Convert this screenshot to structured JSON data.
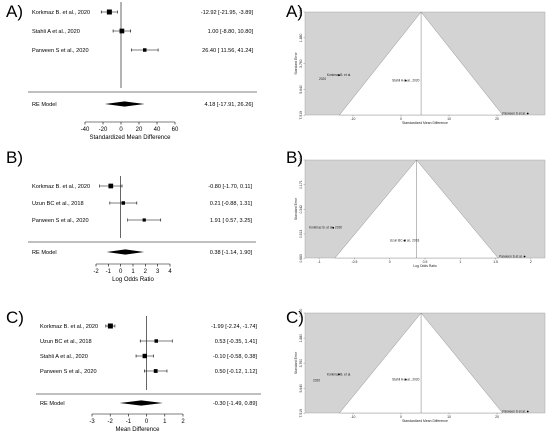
{
  "chart_data": [
    {
      "panel": "A)",
      "type": "forest",
      "xlabel": "Standardized Mean Difference",
      "xlim": [
        -40,
        60
      ],
      "xticks": [
        "-40",
        "-20",
        "0",
        "20",
        "40",
        "60"
      ],
      "xtick_values": [
        -40,
        -20,
        0,
        20,
        40,
        60
      ],
      "studies": [
        {
          "label": "Korkmaz B. et al., 2020",
          "est": -12.92,
          "lo": -21.95,
          "hi": -3.89,
          "ci": "-12.92 [-21.95, -3.89]"
        },
        {
          "label": "Stahli A et al., 2020",
          "est": 1.0,
          "lo": -8.8,
          "hi": 10.8,
          "ci": "1.00 [-8.80, 10.80]"
        },
        {
          "label": "Parween S et al., 2020",
          "est": 26.4,
          "lo": 11.56,
          "hi": 41.24,
          "ci": "26.40 [ 11.56, 41.24]"
        }
      ],
      "model": {
        "label": "RE Model",
        "est": 4.18,
        "lo": -17.91,
        "hi": 26.26,
        "ci": "4.18 [-17.91, 26.26]"
      }
    },
    {
      "panel": "B)",
      "type": "forest",
      "xlabel": "Log Odds Ratio",
      "xlim": [
        -2,
        4
      ],
      "xticks": [
        "-2",
        "-1",
        "0",
        "1",
        "2",
        "3",
        "4"
      ],
      "xtick_values": [
        -2,
        -1,
        0,
        1,
        2,
        3,
        4
      ],
      "studies": [
        {
          "label": "Korkmaz B. et al., 2020",
          "est": -0.8,
          "lo": -1.7,
          "hi": 0.11,
          "ci": "-0.80 [-1.70, 0.11]"
        },
        {
          "label": "Uzun BC et al., 2018",
          "est": 0.21,
          "lo": -0.88,
          "hi": 1.31,
          "ci": "0.21 [-0.88, 1.31]"
        },
        {
          "label": "Parween S et al., 2020",
          "est": 1.91,
          "lo": 0.57,
          "hi": 3.25,
          "ci": "1.91 [ 0.57, 3.25]"
        }
      ],
      "model": {
        "label": "RE Model",
        "est": 0.38,
        "lo": -1.14,
        "hi": 1.9,
        "ci": "0.38 [-1.14, 1.90]"
      }
    },
    {
      "panel": "C)",
      "type": "forest",
      "xlabel": "Mean Difference",
      "xlim": [
        -3,
        2
      ],
      "xticks": [
        "-3",
        "-2",
        "-1",
        "0",
        "1",
        "2"
      ],
      "xtick_values": [
        -3,
        -2,
        -1,
        0,
        1,
        2
      ],
      "studies": [
        {
          "label": "Korkmaz B. et al., 2020",
          "est": -1.99,
          "lo": -2.24,
          "hi": -1.74,
          "ci": "-1.99 [-2.24, -1.74]"
        },
        {
          "label": "Uzun BC et al., 2018",
          "est": 0.53,
          "lo": -0.35,
          "hi": 1.41,
          "ci": "0.53 [-0.35, 1.41]"
        },
        {
          "label": "Stahli A et al., 2020",
          "est": -0.1,
          "lo": -0.58,
          "hi": 0.38,
          "ci": "-0.10 [-0.58, 0.38]"
        },
        {
          "label": "Parween S et al., 2020",
          "est": 0.5,
          "lo": -0.12,
          "hi": 1.12,
          "ci": "0.50 [-0.12, 1.12]"
        }
      ],
      "model": {
        "label": "RE Model",
        "est": -0.3,
        "lo": -1.49,
        "hi": 0.89,
        "ci": "-0.30 [-1.49, 0.89]"
      }
    },
    {
      "panel": "A)",
      "type": "funnel",
      "xlabel": "Standardized Mean Difference",
      "ylabel": "Standard Error",
      "xlim": [
        -20,
        30
      ],
      "ylim": [
        7.5,
        0
      ],
      "xticks": [
        "-10",
        "0",
        "10",
        "20"
      ],
      "xtick_values": [
        -10,
        0,
        10,
        20
      ],
      "yticks": [
        "0.000",
        "1.880",
        "3.760",
        "5.640",
        "7.519"
      ],
      "ytick_values": [
        0,
        1.88,
        3.76,
        5.64,
        7.519
      ],
      "center": 4.18,
      "points": [
        {
          "label": "Korkmaz B. et al.",
          "x": -12.92,
          "y": 4.6
        },
        {
          "label": "2020",
          "x": -12.92,
          "y": 5.0,
          "hidden": true
        },
        {
          "label": "Stahli A et al., 2020",
          "x": 1.0,
          "y": 5.0
        },
        {
          "label": "Parween S et al.",
          "x": 26.4,
          "y": 7.5
        }
      ]
    },
    {
      "panel": "B)",
      "type": "funnel",
      "xlabel": "Log Odds Ratio",
      "ylabel": "Standard Error",
      "xlim": [
        -1.2,
        2.2
      ],
      "ylim": [
        0.68,
        0
      ],
      "xticks": [
        "-1",
        "-0.5",
        "0",
        "0.5",
        "1",
        "1.5",
        "2"
      ],
      "xtick_values": [
        -1,
        -0.5,
        0,
        0.5,
        1,
        1.5,
        2
      ],
      "yticks": [
        "0.000",
        "0.171",
        "0.342",
        "0.513",
        "0.683"
      ],
      "ytick_values": [
        0,
        0.171,
        0.342,
        0.513,
        0.683
      ],
      "center": 0.38,
      "points": [
        {
          "label": "Korkmaz B. et al., 2020",
          "x": -0.8,
          "y": 0.47
        },
        {
          "label": "Uzun BC et al., 2018",
          "x": 0.21,
          "y": 0.56
        },
        {
          "label": "Parween S et al.",
          "x": 1.91,
          "y": 0.68
        }
      ]
    },
    {
      "panel": "C)",
      "type": "funnel",
      "xlabel": "Standardized Mean Difference",
      "ylabel": "Standard Error",
      "xlim": [
        -20,
        30
      ],
      "ylim": [
        7.5,
        0
      ],
      "xticks": [
        "-10",
        "0",
        "10",
        "20"
      ],
      "xtick_values": [
        -10,
        0,
        10,
        20
      ],
      "yticks": [
        "0.000",
        "1.880",
        "3.760",
        "5.640",
        "7.519"
      ],
      "ytick_values": [
        0,
        1.88,
        3.76,
        5.64,
        7.519
      ],
      "center": 4.18,
      "points": [
        {
          "label": "Korkmaz B. et al.",
          "x": -12.92,
          "y": 4.6
        },
        {
          "label": "Stahli A et al., 2020",
          "x": 1.0,
          "y": 5.0
        },
        {
          "label": "Parween S et al.",
          "x": 26.4,
          "y": 7.5
        }
      ],
      "extra_text": [
        "2020"
      ]
    }
  ],
  "panel_labels": {
    "a_left": "A)",
    "b_left": "B)",
    "c_left": "C)",
    "a_right": "A)",
    "b_right": "B)",
    "c_right": "C)"
  }
}
